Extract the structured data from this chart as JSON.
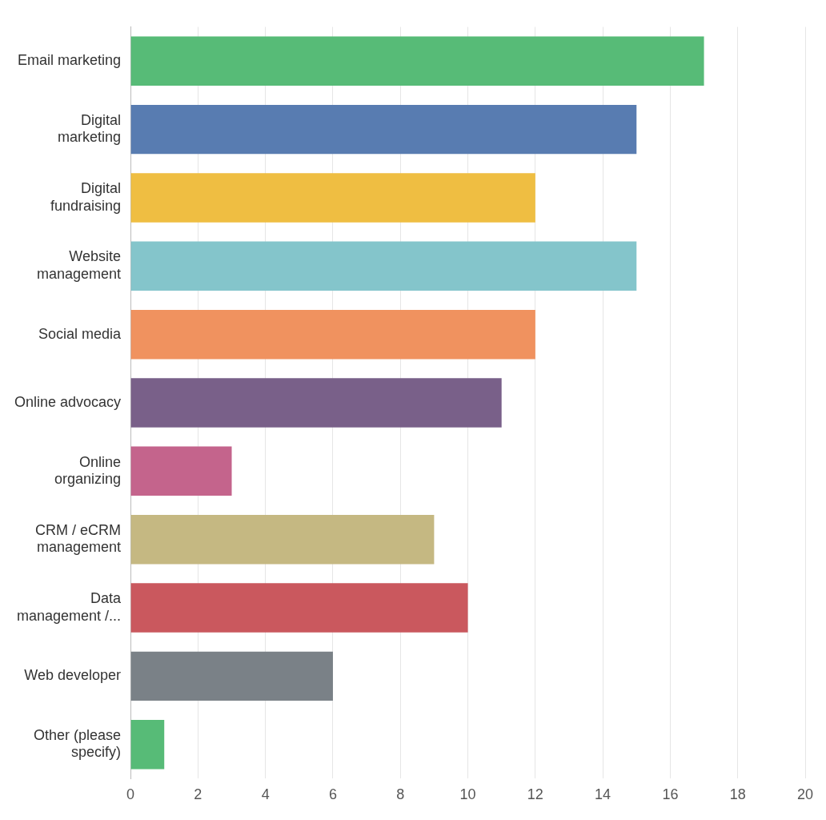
{
  "chart_data": {
    "type": "bar",
    "orientation": "horizontal",
    "categories": [
      "Email marketing",
      "Digital\nmarketing",
      "Digital\nfundraising",
      "Website\nmanagement",
      "Social media",
      "Online advocacy",
      "Online\norganizing",
      "CRM / eCRM\nmanagement",
      "Data\nmanagement /...",
      "Web developer",
      "Other (please\nspecify)"
    ],
    "values": [
      17,
      15,
      12,
      15,
      12,
      11,
      3,
      9,
      10,
      6,
      1
    ],
    "colors": [
      "#57bb77",
      "#587cb1",
      "#efbe42",
      "#84c5cb",
      "#f0925f",
      "#796089",
      "#c4648c",
      "#c5b882",
      "#ca585e",
      "#7a8187",
      "#57bb77"
    ],
    "xlim": [
      0,
      20
    ],
    "xticks": [
      0,
      2,
      4,
      6,
      8,
      10,
      12,
      14,
      16,
      18,
      20
    ],
    "grid": "x",
    "legend": false
  }
}
